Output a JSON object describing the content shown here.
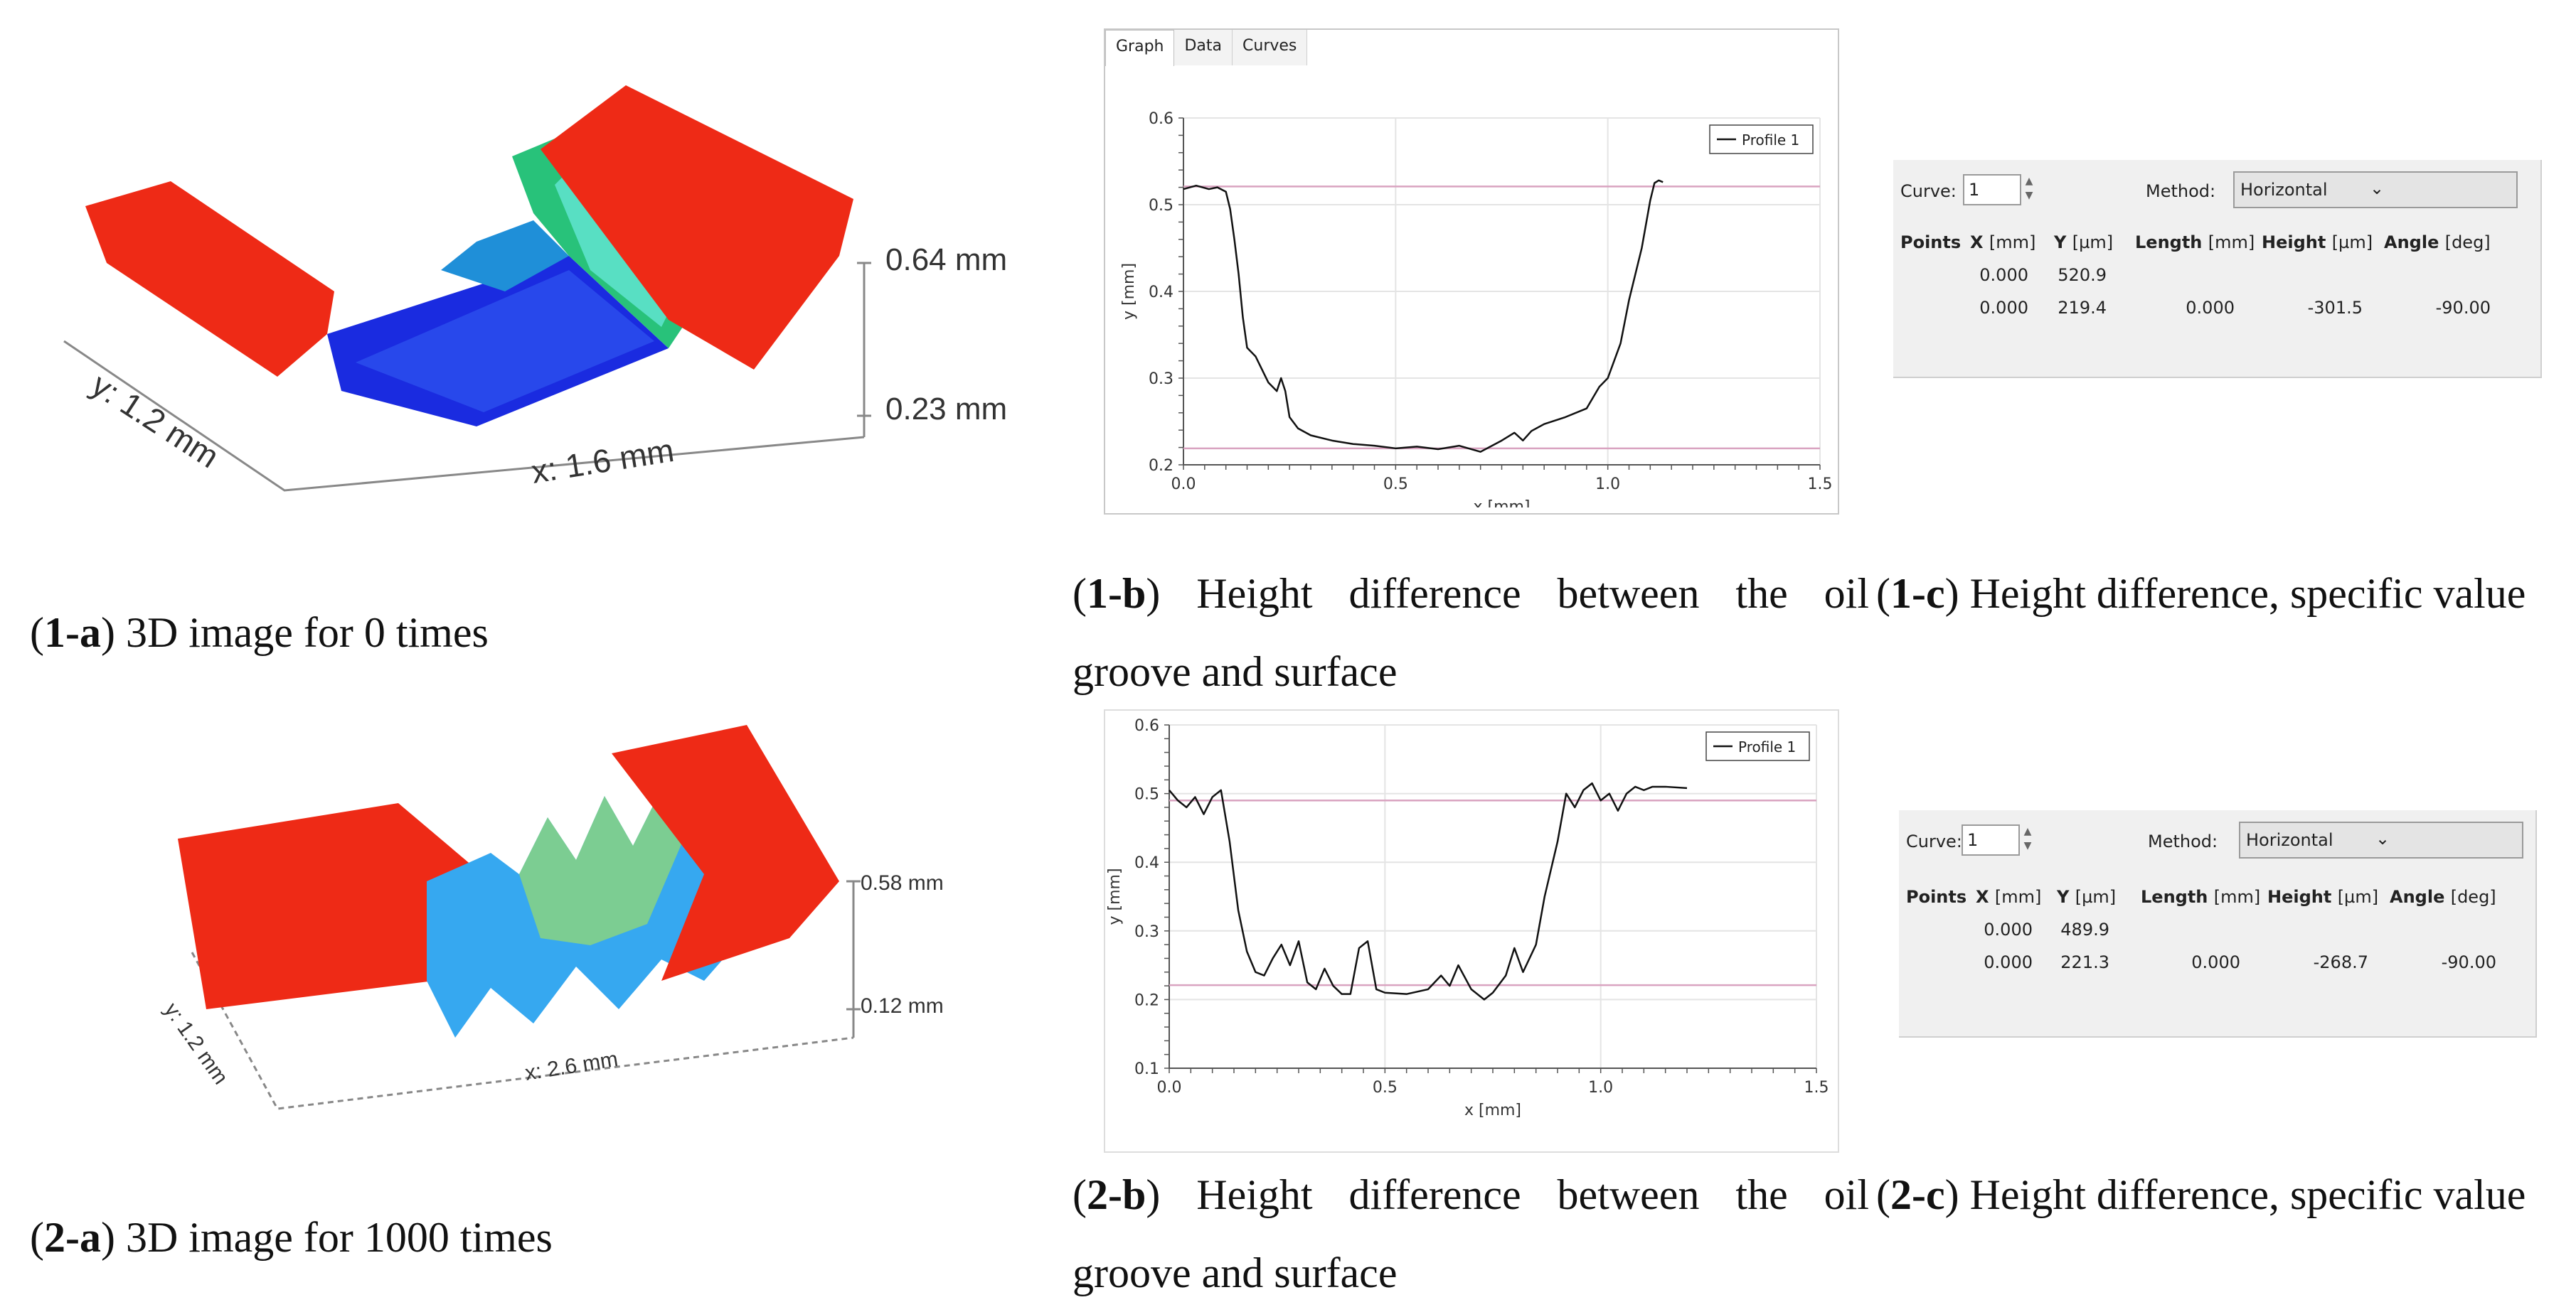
{
  "panels": {
    "p1a": {
      "height_top": "0.64 mm",
      "height_bottom": "0.23 mm",
      "x_label": "x: 1.6 mm",
      "y_label": "y: 1.2 mm",
      "caption_id": "1-a",
      "caption_text": " 3D image for 0 times"
    },
    "p2a": {
      "height_top": "0.58 mm",
      "height_bottom": "0.12 mm",
      "x_label": "x: 2.6 mm",
      "y_label": "y: 1.2 mm",
      "caption_id": "2-a",
      "caption_text": " 3D image for 1000 times"
    },
    "p1b": {
      "tabs": [
        "Graph",
        "Data",
        "Curves"
      ],
      "legend": "Profile 1",
      "xlabel": "x [mm]",
      "ylabel": "y [mm]",
      "caption_id": "1-b",
      "caption_text": " Height difference between the oil groove and surface"
    },
    "p2b": {
      "legend": "Profile 1",
      "xlabel": "x [mm]",
      "ylabel": "y [mm]",
      "caption_id": "2-b",
      "caption_text": " Height difference between the oil groove and surface"
    },
    "p1c": {
      "curve_label": "Curve:",
      "curve_value": "1",
      "method_label": "Method:",
      "method_value": "Horizontal",
      "headers": {
        "points": "Points",
        "x": "X",
        "x_unit": "[mm]",
        "y": "Y",
        "y_unit": "[µm]",
        "length": "Length",
        "length_unit": "[mm]",
        "height": "Height",
        "height_unit": "[µm]",
        "angle": "Angle",
        "angle_unit": "[deg]"
      },
      "rows": [
        {
          "x": "0.000",
          "y": "520.9",
          "length": "",
          "height": "",
          "angle": ""
        },
        {
          "x": "0.000",
          "y": "219.4",
          "length": "0.000",
          "height": "-301.5",
          "angle": "-90.00"
        }
      ],
      "caption_id": "1-c",
      "caption_text": " Height difference, specific value"
    },
    "p2c": {
      "curve_label": "Curve:",
      "curve_value": "1",
      "method_label": "Method:",
      "method_value": "Horizontal",
      "headers": {
        "points": "Points",
        "x": "X",
        "x_unit": "[mm]",
        "y": "Y",
        "y_unit": "[µm]",
        "length": "Length",
        "length_unit": "[mm]",
        "height": "Height",
        "height_unit": "[µm]",
        "angle": "Angle",
        "angle_unit": "[deg]"
      },
      "rows": [
        {
          "x": "0.000",
          "y": "489.9",
          "length": "",
          "height": "",
          "angle": ""
        },
        {
          "x": "0.000",
          "y": "221.3",
          "length": "0.000",
          "height": "-268.7",
          "angle": "-90.00"
        }
      ],
      "caption_id": "2-c",
      "caption_text": " Height difference, specific value"
    }
  },
  "chart_data": [
    {
      "type": "line",
      "title": "",
      "legend": [
        "Profile 1"
      ],
      "xlabel": "x [mm]",
      "ylabel": "y [mm]",
      "xlim": [
        0.0,
        1.5
      ],
      "ylim": [
        0.2,
        0.6
      ],
      "xticks": [
        "0.0",
        "0.5",
        "1.0",
        "1.5"
      ],
      "yticks": [
        "0.2",
        "0.3",
        "0.4",
        "0.5",
        "0.6"
      ],
      "hlines": [
        0.521,
        0.219
      ],
      "series": [
        {
          "name": "Profile 1",
          "x": [
            0.0,
            0.03,
            0.06,
            0.08,
            0.1,
            0.11,
            0.12,
            0.13,
            0.14,
            0.15,
            0.17,
            0.2,
            0.22,
            0.23,
            0.24,
            0.25,
            0.27,
            0.3,
            0.35,
            0.4,
            0.45,
            0.5,
            0.55,
            0.6,
            0.65,
            0.7,
            0.75,
            0.78,
            0.8,
            0.82,
            0.85,
            0.9,
            0.95,
            0.98,
            1.0,
            1.03,
            1.05,
            1.08,
            1.1,
            1.11,
            1.12,
            1.13
          ],
          "y": [
            0.518,
            0.522,
            0.518,
            0.52,
            0.515,
            0.495,
            0.46,
            0.42,
            0.37,
            0.335,
            0.325,
            0.295,
            0.285,
            0.3,
            0.285,
            0.255,
            0.242,
            0.234,
            0.228,
            0.224,
            0.222,
            0.219,
            0.221,
            0.218,
            0.222,
            0.215,
            0.228,
            0.237,
            0.228,
            0.239,
            0.247,
            0.255,
            0.265,
            0.29,
            0.3,
            0.34,
            0.39,
            0.45,
            0.505,
            0.525,
            0.528,
            0.526
          ]
        }
      ]
    },
    {
      "type": "line",
      "title": "",
      "legend": [
        "Profile 1"
      ],
      "xlabel": "x [mm]",
      "ylabel": "y [mm]",
      "xlim": [
        0.0,
        1.5
      ],
      "ylim": [
        0.1,
        0.6
      ],
      "xticks": [
        "0.0",
        "0.5",
        "1.0",
        "1.5"
      ],
      "yticks": [
        "0.1",
        "0.2",
        "0.3",
        "0.4",
        "0.5",
        "0.6"
      ],
      "hlines": [
        0.49,
        0.221
      ],
      "series": [
        {
          "name": "Profile 1",
          "x": [
            0.0,
            0.02,
            0.04,
            0.06,
            0.08,
            0.1,
            0.12,
            0.14,
            0.16,
            0.18,
            0.2,
            0.22,
            0.24,
            0.26,
            0.28,
            0.3,
            0.32,
            0.34,
            0.36,
            0.38,
            0.4,
            0.42,
            0.44,
            0.46,
            0.48,
            0.5,
            0.55,
            0.6,
            0.63,
            0.65,
            0.67,
            0.7,
            0.73,
            0.75,
            0.78,
            0.8,
            0.82,
            0.85,
            0.87,
            0.9,
            0.92,
            0.94,
            0.96,
            0.98,
            1.0,
            1.02,
            1.04,
            1.06,
            1.08,
            1.1,
            1.12,
            1.15,
            1.2
          ],
          "y": [
            0.505,
            0.49,
            0.48,
            0.495,
            0.47,
            0.495,
            0.505,
            0.43,
            0.33,
            0.27,
            0.24,
            0.235,
            0.26,
            0.28,
            0.25,
            0.285,
            0.225,
            0.215,
            0.245,
            0.22,
            0.208,
            0.208,
            0.275,
            0.285,
            0.215,
            0.21,
            0.208,
            0.215,
            0.235,
            0.22,
            0.25,
            0.215,
            0.2,
            0.21,
            0.235,
            0.275,
            0.24,
            0.28,
            0.35,
            0.43,
            0.5,
            0.48,
            0.505,
            0.515,
            0.49,
            0.5,
            0.475,
            0.5,
            0.51,
            0.505,
            0.51,
            0.51,
            0.508
          ]
        }
      ]
    }
  ]
}
